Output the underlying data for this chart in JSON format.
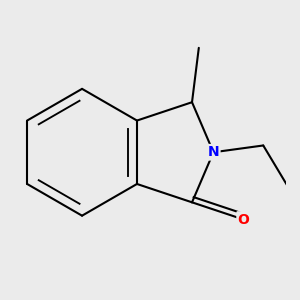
{
  "bg_color": "#ebebeb",
  "bond_color": "#000000",
  "N_color": "#0000ff",
  "O_color": "#ff0000",
  "bond_width": 1.5,
  "figsize": [
    3.0,
    3.0
  ],
  "dpi": 100,
  "xlim": [
    -2.5,
    3.5
  ],
  "ylim": [
    -3.5,
    3.0
  ]
}
